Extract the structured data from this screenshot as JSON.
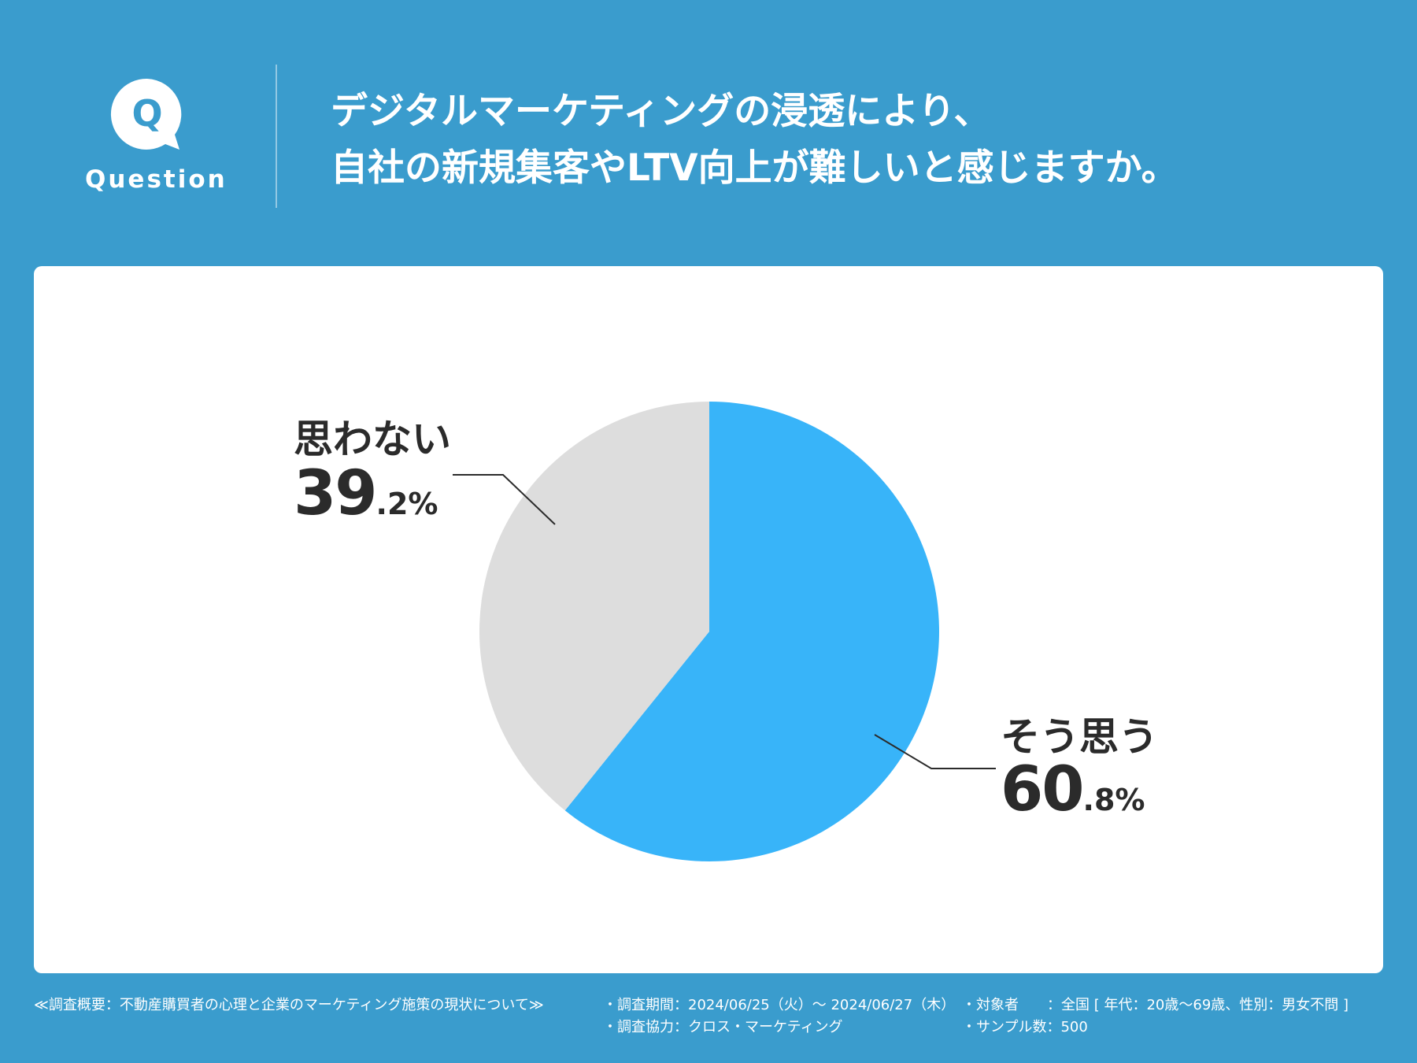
{
  "header": {
    "badge_label": "Question",
    "badge_letter": "Q",
    "title_line1": "デジタルマーケティングの浸透により、",
    "title_line2": "自社の新規集客やLTV向上が難しいと感じますか。"
  },
  "colors": {
    "background": "#3a9ccd",
    "yes_slice": "#38b4f9",
    "no_slice": "#dddddd",
    "text": "#2b2b2b"
  },
  "chart_data": {
    "type": "pie",
    "title": "",
    "slices": [
      {
        "label": "そう思う",
        "value": 60.8,
        "display_int": "60",
        "display_dec": ".8%",
        "color": "#38b4f9"
      },
      {
        "label": "思わない",
        "value": 39.2,
        "display_int": "39",
        "display_dec": ".2%",
        "color": "#dddddd"
      }
    ],
    "start": "12 o'clock",
    "direction": "clockwise"
  },
  "footer": {
    "summary": "≪調査概要：不動産購買者の心理と企業のマーケティング施策の現状について≫",
    "period": "・調査期間：2024/06/25（火）〜 2024/06/27（木）",
    "cooperation": "・調査協力：クロス・マーケティング",
    "target": "・対象者　　：全国 [ 年代：20歳〜69歳、性別：男女不問 ]",
    "sample": "・サンプル数：500"
  }
}
